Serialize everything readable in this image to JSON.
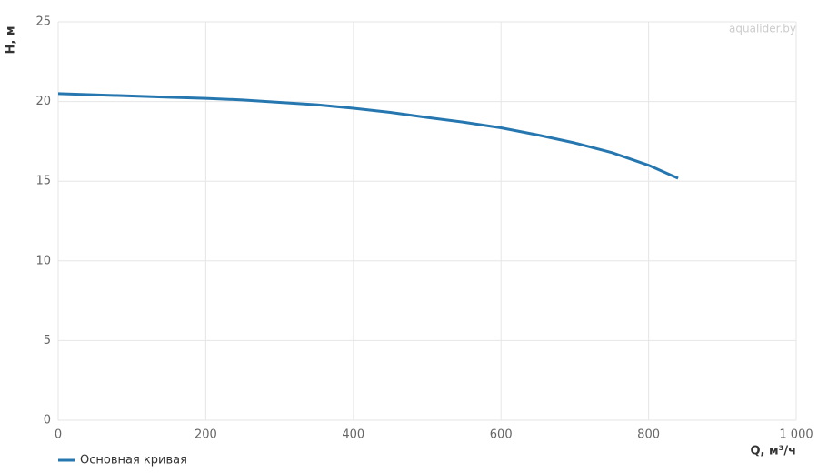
{
  "chart_data": {
    "type": "line",
    "watermark": "aqualider.by",
    "x_label": "Q, м³/ч",
    "y_label": "H, м",
    "x": [
      0,
      50,
      100,
      150,
      200,
      250,
      300,
      350,
      400,
      450,
      500,
      550,
      600,
      650,
      700,
      750,
      800,
      840
    ],
    "series": [
      {
        "name": "Основная кривая",
        "color": "#2677b0",
        "values": [
          20.5,
          20.42,
          20.35,
          20.27,
          20.2,
          20.1,
          19.95,
          19.8,
          19.58,
          19.32,
          19.0,
          18.7,
          18.35,
          17.9,
          17.4,
          16.8,
          16.0,
          15.18
        ]
      }
    ],
    "xlim": [
      0,
      1000
    ],
    "xticks": [
      0,
      200,
      400,
      600,
      800,
      {
        "value": 1000,
        "label": "1 000"
      }
    ],
    "ylim": [
      0,
      25
    ],
    "yticks": [
      0,
      5,
      10,
      15,
      20,
      25
    ],
    "grid": true,
    "legend": "bottom-left"
  }
}
